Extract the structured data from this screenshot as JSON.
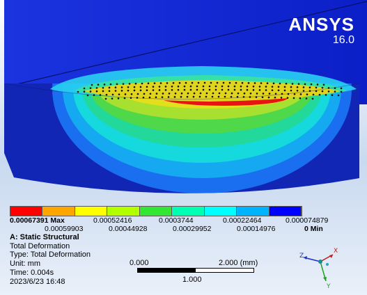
{
  "brand": {
    "name": "ANSYS",
    "version": "16.0"
  },
  "legend": {
    "colors": [
      "#ff0000",
      "#ffa500",
      "#ffff00",
      "#b3ff00",
      "#33e633",
      "#00ffb3",
      "#00ffff",
      "#00b3ff",
      "#0000ff"
    ],
    "max_label": "0.00067391 Max",
    "top_labels": [
      "0.00052416",
      "0.0003744",
      "0.00022464",
      "0.000074879"
    ],
    "bottom_labels": [
      "0.00059903",
      "0.00044928",
      "0.00029952",
      "0.00014976"
    ],
    "min_label": "0 Min"
  },
  "info": {
    "analysis": "A: Static Structural",
    "result": "Total Deformation",
    "type": "Type: Total Deformation",
    "unit": "Unit: mm",
    "time": "Time: 0.004s",
    "date": "2023/6/23 16:48"
  },
  "scale": {
    "start": "0.000",
    "end": "2.000 (mm)",
    "mid": "1.000"
  },
  "triad": {
    "x": "X",
    "y": "Y",
    "z": "Z"
  }
}
